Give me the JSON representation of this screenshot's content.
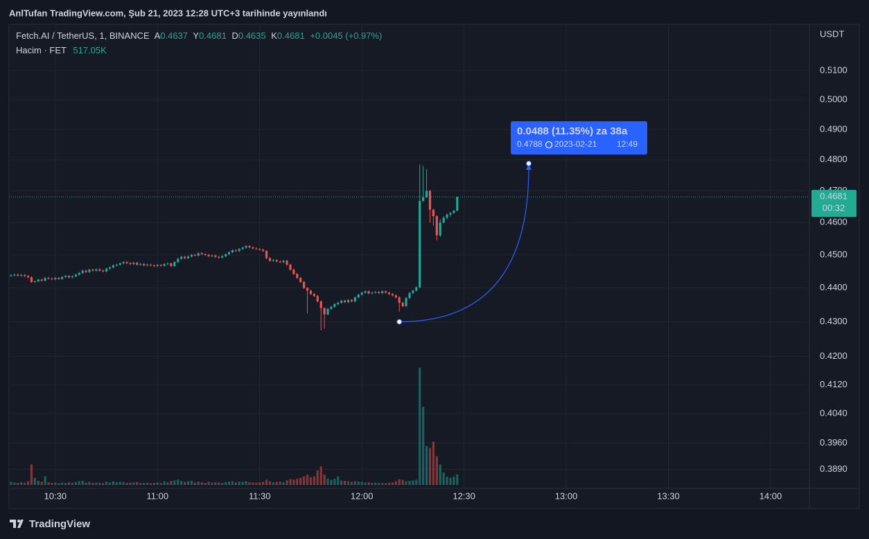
{
  "header": {
    "title": "AnlTufan TradingView.com, Şub 21, 2023 12:28 UTC+3 tarihinde yayınlandı",
    "brand": "TradingView"
  },
  "chart_data": {
    "type": "candlestick",
    "symbol": "Fetch.AI / TetherUS, 1, BINANCE",
    "ohlc_labels": [
      "A",
      "Y",
      "D",
      "K"
    ],
    "change": "+0.0045 (+0.97%)",
    "volume_title": "Hacim · FET",
    "volume_label": "517.05K",
    "currency": "USDT",
    "countdown": "00:32",
    "log": true,
    "grid": true,
    "up_color": "#26a69a",
    "down_color": "#ef5350",
    "xlim": [
      616.4,
      851.4
    ],
    "xticks": [
      {
        "value": 630,
        "label": "10:30"
      },
      {
        "value": 660,
        "label": "11:00"
      },
      {
        "value": 690,
        "label": "11:30"
      },
      {
        "value": 720,
        "label": "12:00"
      },
      {
        "value": 750,
        "label": "12:30"
      },
      {
        "value": 780,
        "label": "13:00"
      },
      {
        "value": 810,
        "label": "13:30"
      },
      {
        "value": 840,
        "label": "14:00"
      }
    ],
    "ylim": [
      0.384,
      0.5263
    ],
    "yticks": [
      {
        "value": 0.51,
        "label": "0.5100"
      },
      {
        "value": 0.5,
        "label": "0.5000"
      },
      {
        "value": 0.49,
        "label": "0.4900"
      },
      {
        "value": 0.48,
        "label": "0.4800"
      },
      {
        "value": 0.47,
        "label": "0.4700"
      },
      {
        "value": 0.46,
        "label": "0.4600"
      },
      {
        "value": 0.45,
        "label": "0.4500"
      },
      {
        "value": 0.44,
        "label": "0.4400"
      },
      {
        "value": 0.43,
        "label": "0.4300"
      },
      {
        "value": 0.42,
        "label": "0.4200"
      },
      {
        "value": 0.412,
        "label": "0.4120"
      },
      {
        "value": 0.404,
        "label": "0.4040"
      },
      {
        "value": 0.396,
        "label": "0.3960"
      },
      {
        "value": 0.389,
        "label": "0.3890"
      }
    ],
    "volume_ylim": [
      0,
      5900000
    ],
    "measure": {
      "label": "0.0488 (11.35%) za 38a",
      "from": {
        "x": 731,
        "y": 0.43
      },
      "to": {
        "x": {
          "value": 769,
          "label": "12:49"
        },
        "y": 0.4788
      },
      "date": "2023-02-21"
    },
    "x": [
      617,
      618,
      619,
      620,
      621,
      622,
      623,
      624,
      625,
      626,
      627,
      628,
      629,
      630,
      631,
      632,
      633,
      634,
      635,
      636,
      637,
      638,
      639,
      640,
      641,
      642,
      643,
      644,
      645,
      646,
      647,
      648,
      649,
      650,
      651,
      652,
      653,
      654,
      655,
      656,
      657,
      658,
      659,
      660,
      661,
      662,
      663,
      664,
      665,
      666,
      667,
      668,
      669,
      670,
      671,
      672,
      673,
      674,
      675,
      676,
      677,
      678,
      679,
      680,
      681,
      682,
      683,
      684,
      685,
      686,
      687,
      688,
      689,
      690,
      691,
      692,
      693,
      694,
      695,
      696,
      697,
      698,
      699,
      700,
      701,
      702,
      703,
      704,
      705,
      706,
      707,
      708,
      709,
      710,
      711,
      712,
      713,
      714,
      715,
      716,
      717,
      718,
      719,
      720,
      721,
      722,
      723,
      724,
      725,
      726,
      727,
      728,
      729,
      730,
      731,
      732,
      733,
      734,
      735,
      736,
      737,
      738,
      739,
      740,
      741,
      742,
      743,
      744,
      745,
      746,
      747,
      748
    ],
    "ohlc": [
      [
        0.4436,
        0.4441,
        0.4433,
        0.4438
      ],
      [
        0.4438,
        0.4443,
        0.4435,
        0.444
      ],
      [
        0.444,
        0.4443,
        0.4434,
        0.4437
      ],
      [
        0.4437,
        0.4442,
        0.4434,
        0.4439
      ],
      [
        0.4439,
        0.4442,
        0.4433,
        0.4436
      ],
      [
        0.4436,
        0.4439,
        0.4429,
        0.4432
      ],
      [
        0.4432,
        0.4435,
        0.4415,
        0.4418
      ],
      [
        0.4418,
        0.4423,
        0.4415,
        0.442
      ],
      [
        0.442,
        0.4428,
        0.4417,
        0.4425
      ],
      [
        0.4425,
        0.4428,
        0.4419,
        0.4422
      ],
      [
        0.4422,
        0.4433,
        0.4419,
        0.443
      ],
      [
        0.443,
        0.4433,
        0.4425,
        0.4428
      ],
      [
        0.4428,
        0.4431,
        0.4423,
        0.4426
      ],
      [
        0.4426,
        0.4433,
        0.4423,
        0.443
      ],
      [
        0.443,
        0.4433,
        0.4424,
        0.4427
      ],
      [
        0.4427,
        0.4436,
        0.4424,
        0.4433
      ],
      [
        0.4433,
        0.4439,
        0.443,
        0.4436
      ],
      [
        0.4436,
        0.4439,
        0.4429,
        0.4432
      ],
      [
        0.4432,
        0.4438,
        0.4429,
        0.4435
      ],
      [
        0.4435,
        0.4443,
        0.4432,
        0.444
      ],
      [
        0.444,
        0.4448,
        0.4437,
        0.4445
      ],
      [
        0.4445,
        0.4455,
        0.4442,
        0.4452
      ],
      [
        0.4452,
        0.4455,
        0.4445,
        0.4448
      ],
      [
        0.4448,
        0.4458,
        0.4445,
        0.4455
      ],
      [
        0.4455,
        0.4458,
        0.4449,
        0.4452
      ],
      [
        0.4452,
        0.4459,
        0.4449,
        0.4456
      ],
      [
        0.4456,
        0.4459,
        0.4449,
        0.4452
      ],
      [
        0.4452,
        0.4455,
        0.4447,
        0.445
      ],
      [
        0.445,
        0.4461,
        0.4447,
        0.4458
      ],
      [
        0.4458,
        0.4465,
        0.4455,
        0.4462
      ],
      [
        0.4462,
        0.4471,
        0.4459,
        0.4468
      ],
      [
        0.4468,
        0.4473,
        0.4465,
        0.447
      ],
      [
        0.447,
        0.4477,
        0.4467,
        0.4474
      ],
      [
        0.4474,
        0.4481,
        0.4471,
        0.4478
      ],
      [
        0.4478,
        0.4481,
        0.4472,
        0.4475
      ],
      [
        0.4475,
        0.4478,
        0.4469,
        0.4472
      ],
      [
        0.4472,
        0.4479,
        0.4469,
        0.4476
      ],
      [
        0.4476,
        0.4479,
        0.4467,
        0.447
      ],
      [
        0.447,
        0.4475,
        0.4467,
        0.4472
      ],
      [
        0.4472,
        0.4475,
        0.4465,
        0.4468
      ],
      [
        0.4468,
        0.4473,
        0.4465,
        0.447
      ],
      [
        0.447,
        0.4473,
        0.4465,
        0.4468
      ],
      [
        0.4468,
        0.4471,
        0.4463,
        0.4466
      ],
      [
        0.4466,
        0.4472,
        0.4463,
        0.4469
      ],
      [
        0.4469,
        0.4472,
        0.4464,
        0.4467
      ],
      [
        0.4467,
        0.4475,
        0.4464,
        0.4472
      ],
      [
        0.4472,
        0.4477,
        0.4469,
        0.4474
      ],
      [
        0.4474,
        0.4477,
        0.4463,
        0.4466
      ],
      [
        0.4466,
        0.4481,
        0.4463,
        0.4478
      ],
      [
        0.4478,
        0.4491,
        0.4475,
        0.4488
      ],
      [
        0.4488,
        0.4497,
        0.4485,
        0.4494
      ],
      [
        0.4494,
        0.4497,
        0.4487,
        0.449
      ],
      [
        0.449,
        0.4498,
        0.4487,
        0.4495
      ],
      [
        0.4495,
        0.4503,
        0.4492,
        0.45
      ],
      [
        0.45,
        0.4503,
        0.4495,
        0.4498
      ],
      [
        0.4498,
        0.4508,
        0.4495,
        0.4505
      ],
      [
        0.4505,
        0.4508,
        0.4499,
        0.4502
      ],
      [
        0.4502,
        0.4505,
        0.4497,
        0.45
      ],
      [
        0.45,
        0.4503,
        0.4493,
        0.4496
      ],
      [
        0.4496,
        0.4501,
        0.4493,
        0.4498
      ],
      [
        0.4498,
        0.4501,
        0.4491,
        0.4494
      ],
      [
        0.4494,
        0.4497,
        0.4489,
        0.4492
      ],
      [
        0.4492,
        0.4499,
        0.4489,
        0.4496
      ],
      [
        0.4496,
        0.4505,
        0.4493,
        0.4502
      ],
      [
        0.4502,
        0.4511,
        0.4499,
        0.4508
      ],
      [
        0.4508,
        0.4517,
        0.4505,
        0.4514
      ],
      [
        0.4514,
        0.4517,
        0.4509,
        0.4512
      ],
      [
        0.4512,
        0.4521,
        0.4509,
        0.4518
      ],
      [
        0.4518,
        0.4525,
        0.4515,
        0.4522
      ],
      [
        0.4522,
        0.453,
        0.4519,
        0.4527
      ],
      [
        0.4527,
        0.453,
        0.452,
        0.4523
      ],
      [
        0.4523,
        0.4526,
        0.4517,
        0.452
      ],
      [
        0.452,
        0.4523,
        0.4515,
        0.4518
      ],
      [
        0.4518,
        0.4521,
        0.4513,
        0.4516
      ],
      [
        0.4516,
        0.4519,
        0.4509,
        0.4512
      ],
      [
        0.4512,
        0.4515,
        0.4487,
        0.449
      ],
      [
        0.449,
        0.4493,
        0.4479,
        0.4482
      ],
      [
        0.4482,
        0.4487,
        0.4479,
        0.4484
      ],
      [
        0.4484,
        0.4487,
        0.4477,
        0.448
      ],
      [
        0.448,
        0.4483,
        0.4475,
        0.4478
      ],
      [
        0.4478,
        0.4485,
        0.4475,
        0.4482
      ],
      [
        0.4482,
        0.4485,
        0.4467,
        0.447
      ],
      [
        0.447,
        0.4473,
        0.4452,
        0.4455
      ],
      [
        0.4455,
        0.4458,
        0.4439,
        0.4442
      ],
      [
        0.4442,
        0.4445,
        0.4427,
        0.443
      ],
      [
        0.443,
        0.4433,
        0.4415,
        0.4418
      ],
      [
        0.4418,
        0.4421,
        0.4397,
        0.44
      ],
      [
        0.44,
        0.4403,
        0.4325,
        0.4392
      ],
      [
        0.4392,
        0.4395,
        0.4379,
        0.4382
      ],
      [
        0.4382,
        0.4385,
        0.4373,
        0.4376
      ],
      [
        0.4376,
        0.4379,
        0.4357,
        0.436
      ],
      [
        0.436,
        0.4363,
        0.4275,
        0.434
      ],
      [
        0.434,
        0.4343,
        0.428,
        0.4322
      ],
      [
        0.4322,
        0.4341,
        0.4319,
        0.4338
      ],
      [
        0.4338,
        0.4347,
        0.4335,
        0.4344
      ],
      [
        0.4344,
        0.4355,
        0.4341,
        0.4352
      ],
      [
        0.4352,
        0.4359,
        0.4349,
        0.4356
      ],
      [
        0.4356,
        0.4365,
        0.4353,
        0.4362
      ],
      [
        0.4362,
        0.4365,
        0.4355,
        0.4358
      ],
      [
        0.4358,
        0.4367,
        0.4355,
        0.4364
      ],
      [
        0.4364,
        0.4367,
        0.4357,
        0.436
      ],
      [
        0.436,
        0.4375,
        0.4357,
        0.4372
      ],
      [
        0.4372,
        0.4383,
        0.4369,
        0.438
      ],
      [
        0.438,
        0.4389,
        0.4377,
        0.4386
      ],
      [
        0.4386,
        0.4393,
        0.4383,
        0.439
      ],
      [
        0.439,
        0.4393,
        0.4381,
        0.4384
      ],
      [
        0.4384,
        0.4389,
        0.4381,
        0.4386
      ],
      [
        0.4386,
        0.4391,
        0.4383,
        0.4388
      ],
      [
        0.4388,
        0.4391,
        0.4382,
        0.4385
      ],
      [
        0.4385,
        0.4393,
        0.4382,
        0.439
      ],
      [
        0.439,
        0.4393,
        0.4383,
        0.4386
      ],
      [
        0.4386,
        0.4389,
        0.4379,
        0.4382
      ],
      [
        0.4382,
        0.4385,
        0.4375,
        0.4378
      ],
      [
        0.4378,
        0.4381,
        0.4369,
        0.4372
      ],
      [
        0.4372,
        0.4375,
        0.433,
        0.4356
      ],
      [
        0.4356,
        0.4359,
        0.4343,
        0.4346
      ],
      [
        0.4346,
        0.4373,
        0.4343,
        0.437
      ],
      [
        0.437,
        0.4388,
        0.4367,
        0.4385
      ],
      [
        0.4385,
        0.4395,
        0.4382,
        0.4392
      ],
      [
        0.4392,
        0.4405,
        0.4389,
        0.4402
      ],
      [
        0.4402,
        0.4785,
        0.4399,
        0.4668
      ],
      [
        0.4668,
        0.478,
        0.4665,
        0.468
      ],
      [
        0.468,
        0.477,
        0.4677,
        0.47
      ],
      [
        0.47,
        0.4703,
        0.46,
        0.464
      ],
      [
        0.464,
        0.4643,
        0.459,
        0.462
      ],
      [
        0.462,
        0.4623,
        0.4545,
        0.456
      ],
      [
        0.456,
        0.461,
        0.4555,
        0.46
      ],
      [
        0.46,
        0.462,
        0.4597,
        0.4615
      ],
      [
        0.4615,
        0.4628,
        0.461,
        0.4625
      ],
      [
        0.4625,
        0.4633,
        0.4618,
        0.463
      ],
      [
        0.463,
        0.464,
        0.4627,
        0.4637
      ],
      [
        0.4637,
        0.4681,
        0.4635,
        0.4681
      ]
    ],
    "volume": [
      150000,
      120000,
      100000,
      130000,
      110000,
      180000,
      1000000,
      350000,
      200000,
      150000,
      420000,
      130000,
      100000,
      120000,
      90000,
      110000,
      100000,
      120000,
      100000,
      140000,
      180000,
      200000,
      110000,
      150000,
      100000,
      120000,
      100000,
      90000,
      160000,
      120000,
      180000,
      130000,
      150000,
      140000,
      100000,
      110000,
      120000,
      140000,
      90000,
      100000,
      110000,
      90000,
      100000,
      120000,
      90000,
      180000,
      130000,
      200000,
      220000,
      260000,
      200000,
      150000,
      180000,
      200000,
      120000,
      160000,
      130000,
      100000,
      150000,
      110000,
      130000,
      120000,
      100000,
      140000,
      160000,
      180000,
      120000,
      160000,
      150000,
      180000,
      130000,
      120000,
      110000,
      130000,
      150000,
      250000,
      180000,
      130000,
      150000,
      160000,
      140000,
      220000,
      280000,
      260000,
      300000,
      350000,
      420000,
      500000,
      380000,
      420000,
      700000,
      900000,
      500000,
      300000,
      250000,
      300000,
      420000,
      220000,
      200000,
      180000,
      150000,
      180000,
      160000,
      150000,
      120000,
      130000,
      100000,
      110000,
      90000,
      100000,
      90000,
      110000,
      120000,
      180000,
      280000,
      250000,
      180000,
      200000,
      220000,
      250000,
      5700000,
      3800000,
      1900000,
      1800000,
      2100000,
      1400000,
      1000000,
      600000,
      400000,
      350000,
      400000,
      517050
    ]
  }
}
